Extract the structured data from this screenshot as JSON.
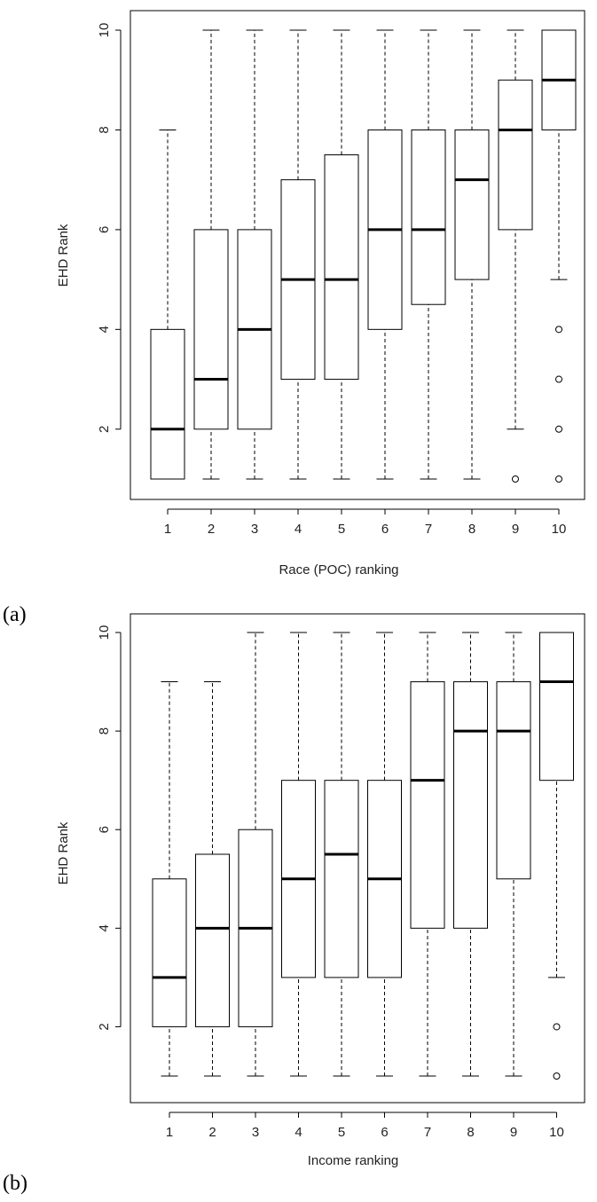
{
  "chart_data": [
    {
      "type": "boxplot",
      "panel_label": "(a)",
      "xlabel": "Race (POC) ranking",
      "ylabel": "EHD Rank",
      "categories": [
        "1",
        "2",
        "3",
        "4",
        "5",
        "6",
        "7",
        "8",
        "9",
        "10"
      ],
      "yticks": [
        "2",
        "4",
        "6",
        "8",
        "10"
      ],
      "ylim": [
        0.6,
        10.5
      ],
      "boxes": [
        {
          "cat": "1",
          "whisker_low": 1,
          "q1": 1,
          "median": 2,
          "q3": 4,
          "whisker_high": 8,
          "outliers": []
        },
        {
          "cat": "2",
          "whisker_low": 1,
          "q1": 2,
          "median": 3,
          "q3": 6,
          "whisker_high": 10,
          "outliers": []
        },
        {
          "cat": "3",
          "whisker_low": 1,
          "q1": 2,
          "median": 4,
          "q3": 6,
          "whisker_high": 10,
          "outliers": []
        },
        {
          "cat": "4",
          "whisker_low": 1,
          "q1": 3,
          "median": 5,
          "q3": 7,
          "whisker_high": 10,
          "outliers": []
        },
        {
          "cat": "5",
          "whisker_low": 1,
          "q1": 3,
          "median": 5,
          "q3": 7.5,
          "whisker_high": 10,
          "outliers": []
        },
        {
          "cat": "6",
          "whisker_low": 1,
          "q1": 4,
          "median": 6,
          "q3": 8,
          "whisker_high": 10,
          "outliers": []
        },
        {
          "cat": "7",
          "whisker_low": 1,
          "q1": 4.5,
          "median": 6,
          "q3": 8,
          "whisker_high": 10,
          "outliers": []
        },
        {
          "cat": "8",
          "whisker_low": 1,
          "q1": 5,
          "median": 7,
          "q3": 8,
          "whisker_high": 10,
          "outliers": []
        },
        {
          "cat": "9",
          "whisker_low": 2,
          "q1": 6,
          "median": 8,
          "q3": 9,
          "whisker_high": 10,
          "outliers": [
            1
          ]
        },
        {
          "cat": "10",
          "whisker_low": 5,
          "q1": 8,
          "median": 9,
          "q3": 10,
          "whisker_high": 10,
          "outliers": [
            1,
            2,
            3,
            4
          ]
        }
      ]
    },
    {
      "type": "boxplot",
      "panel_label": "(b)",
      "xlabel": "Income ranking",
      "ylabel": "EHD Rank",
      "categories": [
        "1",
        "2",
        "3",
        "4",
        "5",
        "6",
        "7",
        "8",
        "9",
        "10"
      ],
      "yticks": [
        "2",
        "4",
        "6",
        "8",
        "10"
      ],
      "ylim": [
        0.6,
        10.5
      ],
      "boxes": [
        {
          "cat": "1",
          "whisker_low": 1,
          "q1": 2,
          "median": 3,
          "q3": 5,
          "whisker_high": 9,
          "outliers": []
        },
        {
          "cat": "2",
          "whisker_low": 1,
          "q1": 2,
          "median": 4,
          "q3": 5.5,
          "whisker_high": 9,
          "outliers": []
        },
        {
          "cat": "3",
          "whisker_low": 1,
          "q1": 2,
          "median": 4,
          "q3": 6,
          "whisker_high": 10,
          "outliers": []
        },
        {
          "cat": "4",
          "whisker_low": 1,
          "q1": 3,
          "median": 5,
          "q3": 7,
          "whisker_high": 10,
          "outliers": []
        },
        {
          "cat": "5",
          "whisker_low": 1,
          "q1": 3,
          "median": 5.5,
          "q3": 7,
          "whisker_high": 10,
          "outliers": []
        },
        {
          "cat": "6",
          "whisker_low": 1,
          "q1": 3,
          "median": 5,
          "q3": 7,
          "whisker_high": 10,
          "outliers": []
        },
        {
          "cat": "7",
          "whisker_low": 1,
          "q1": 4,
          "median": 7,
          "q3": 9,
          "whisker_high": 10,
          "outliers": []
        },
        {
          "cat": "8",
          "whisker_low": 1,
          "q1": 4,
          "median": 8,
          "q3": 9,
          "whisker_high": 10,
          "outliers": []
        },
        {
          "cat": "9",
          "whisker_low": 1,
          "q1": 5,
          "median": 8,
          "q3": 9,
          "whisker_high": 10,
          "outliers": []
        },
        {
          "cat": "10",
          "whisker_low": 3,
          "q1": 7,
          "median": 9,
          "q3": 10,
          "whisker_high": 10,
          "outliers": [
            1,
            2
          ]
        }
      ]
    }
  ]
}
